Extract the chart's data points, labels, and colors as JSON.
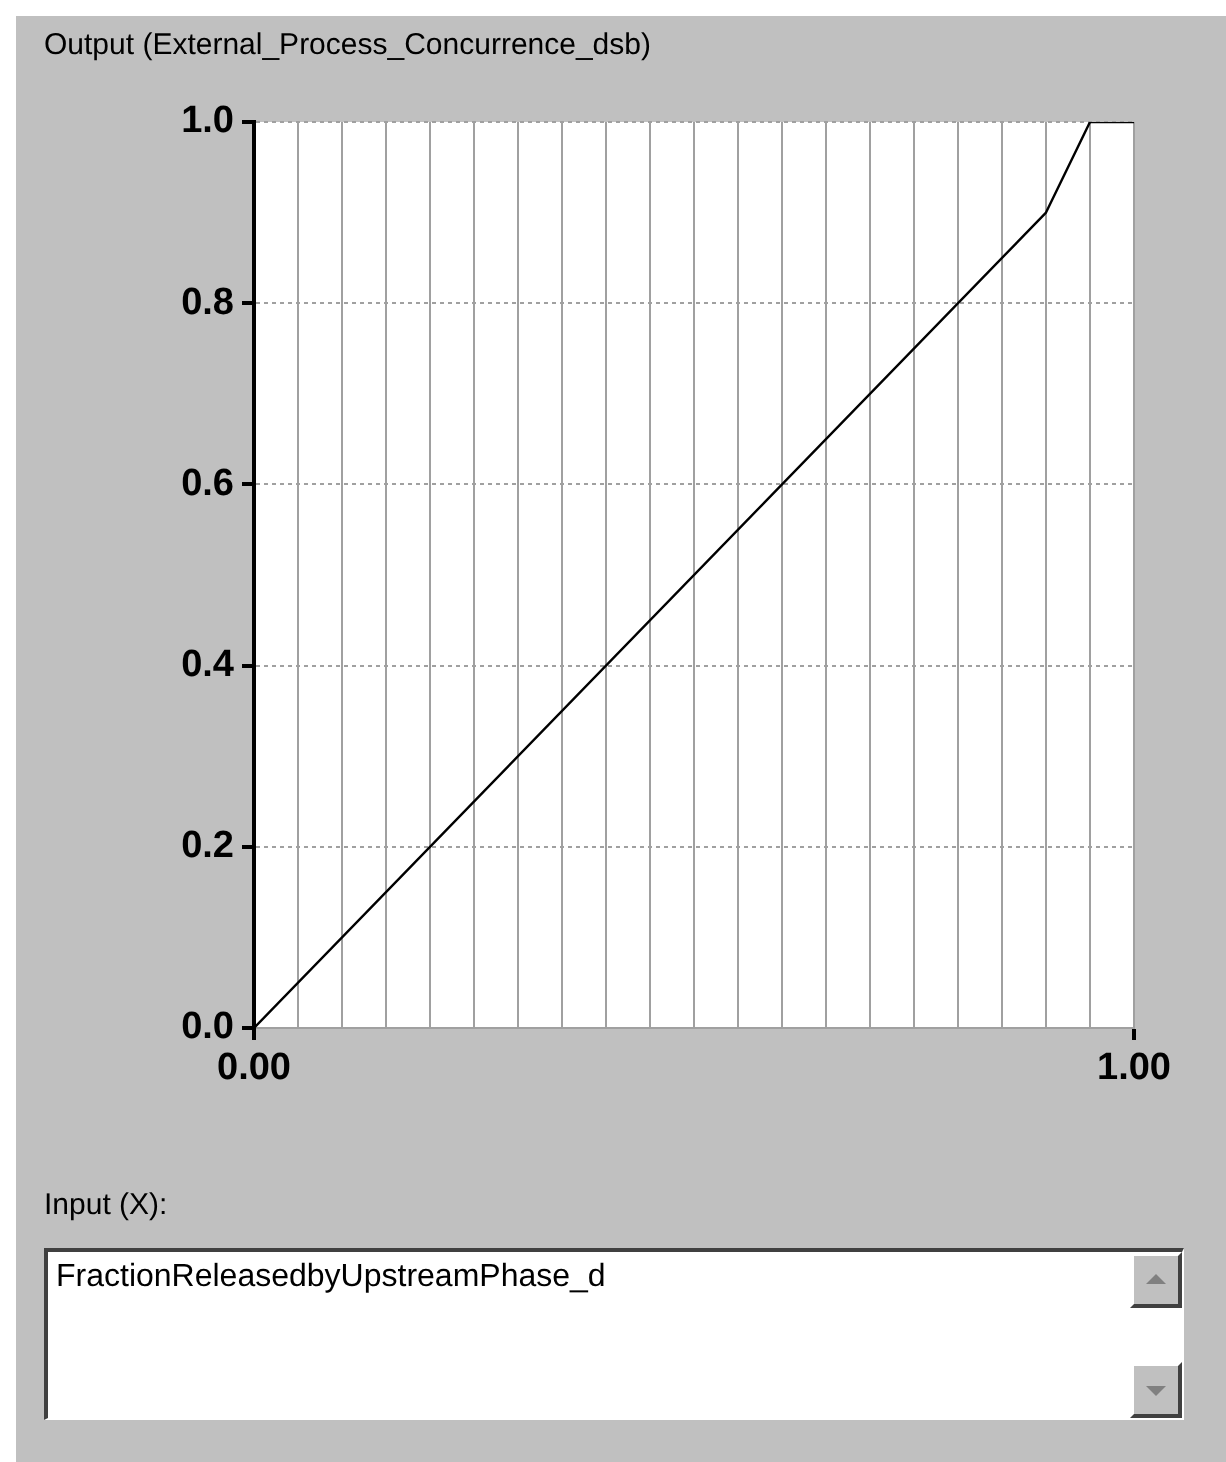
{
  "chart_data": {
    "type": "line",
    "ylabel": "Output (External_Process_Concurrence_dsb)",
    "xlabel": "Input (X):",
    "annotations": [
      "FractionReleasedbyUpstreamPhase_d"
    ],
    "x": [
      0,
      0.9,
      0.95,
      1
    ],
    "series": [
      {
        "color": "#000000",
        "values": [
          0,
          0.9,
          1,
          1
        ]
      }
    ],
    "xlim": [
      0,
      1
    ],
    "ylim": [
      0,
      1
    ],
    "xticks": [
      {
        "value": 0,
        "label": "0.00"
      },
      {
        "value": 0.05,
        "label": null
      },
      {
        "value": 0.1,
        "label": null
      },
      {
        "value": 0.15,
        "label": null
      },
      {
        "value": 0.2,
        "label": null
      },
      {
        "value": 0.25,
        "label": null
      },
      {
        "value": 0.3,
        "label": null
      },
      {
        "value": 0.35,
        "label": null
      },
      {
        "value": 0.4,
        "label": null
      },
      {
        "value": 0.45,
        "label": null
      },
      {
        "value": 0.5,
        "label": null
      },
      {
        "value": 0.55,
        "label": null
      },
      {
        "value": 0.6,
        "label": null
      },
      {
        "value": 0.65,
        "label": null
      },
      {
        "value": 0.7,
        "label": null
      },
      {
        "value": 0.75,
        "label": null
      },
      {
        "value": 0.8,
        "label": null
      },
      {
        "value": 0.85,
        "label": null
      },
      {
        "value": 0.9,
        "label": null
      },
      {
        "value": 0.95,
        "label": null
      },
      {
        "value": 1,
        "label": "1.00"
      }
    ],
    "yticks": [
      {
        "value": 0,
        "label": "0.0"
      },
      {
        "value": 0.2,
        "label": "0.2"
      },
      {
        "value": 0.4,
        "label": "0.4"
      },
      {
        "value": 0.6,
        "label": "0.6"
      },
      {
        "value": 0.8,
        "label": "0.8"
      },
      {
        "value": 1,
        "label": "1.0"
      }
    ],
    "grid": true,
    "marker": "none",
    "legend": false
  }
}
